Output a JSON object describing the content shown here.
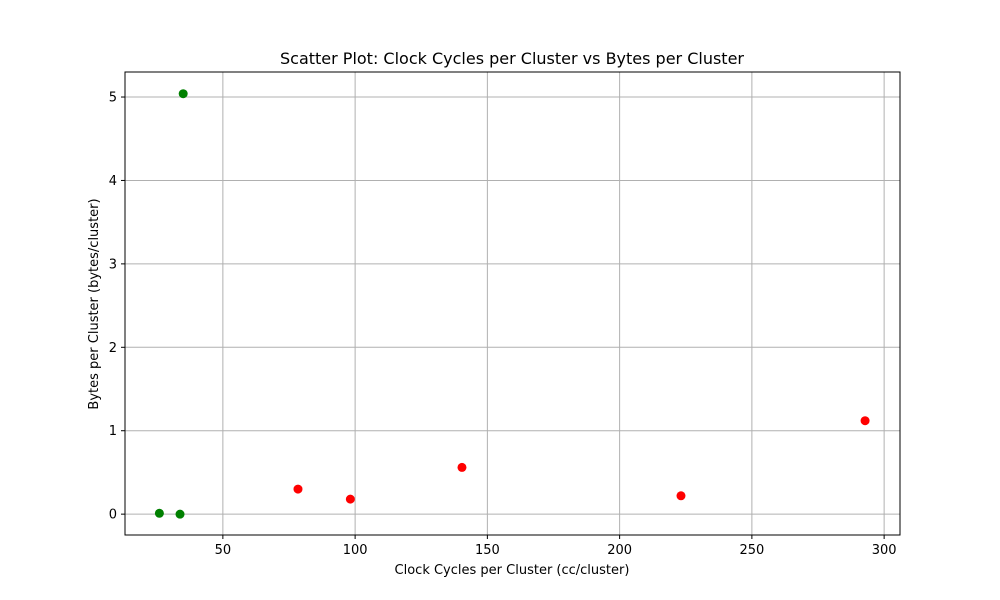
{
  "chart_data": {
    "type": "scatter",
    "title": "Scatter Plot: Clock Cycles per Cluster vs Bytes per Cluster",
    "xlabel": "Clock Cycles per Cluster (cc/cluster)",
    "ylabel": "Bytes per Cluster (bytes/cluster)",
    "xlim": [
      13,
      306
    ],
    "ylim": [
      -0.25,
      5.3
    ],
    "xticks": [
      50,
      100,
      150,
      200,
      250,
      300
    ],
    "yticks": [
      0,
      1,
      2,
      3,
      4,
      5
    ],
    "grid": true,
    "colors": {
      "green": "#008000",
      "red": "#ff0000",
      "grid": "#b0b0b0"
    },
    "points": [
      {
        "x": 26,
        "y": 0.01,
        "color": "green"
      },
      {
        "x": 33.8,
        "y": 0.0,
        "color": "green"
      },
      {
        "x": 35,
        "y": 5.04,
        "color": "green"
      },
      {
        "x": 78.4,
        "y": 0.3,
        "color": "red"
      },
      {
        "x": 98.2,
        "y": 0.18,
        "color": "red"
      },
      {
        "x": 140.4,
        "y": 0.56,
        "color": "red"
      },
      {
        "x": 223.2,
        "y": 0.22,
        "color": "red"
      },
      {
        "x": 292.8,
        "y": 1.12,
        "color": "red"
      }
    ]
  }
}
